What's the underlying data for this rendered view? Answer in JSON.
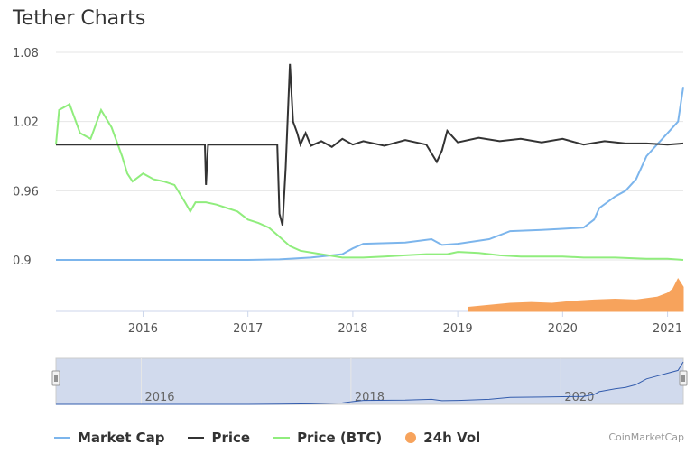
{
  "header": {
    "title": "Tether Charts"
  },
  "credit": "CoinMarketCap",
  "chart_data": {
    "type": "line",
    "yaxis": {
      "ticks": [
        "1.08",
        "1.02",
        "0.96",
        "0.9"
      ],
      "range": [
        0.88,
        1.08
      ]
    },
    "xaxis": {
      "ticks": [
        "2016",
        "2017",
        "2018",
        "2019",
        "2020",
        "2021"
      ],
      "range": [
        "2015-02",
        "2021-03"
      ]
    },
    "navigator_ticks": [
      "2016",
      "2018",
      "2020"
    ],
    "colors": {
      "market_cap": "#7cb5ec",
      "price": "#333333",
      "price_btc": "#90ed7d",
      "vol": "#f7a35c"
    },
    "series": [
      {
        "name": "Price",
        "x": [
          2015.17,
          2016.0,
          2016.59,
          2016.6,
          2016.62,
          2017.0,
          2017.1,
          2017.25,
          2017.28,
          2017.3,
          2017.33,
          2017.36,
          2017.4,
          2017.43,
          2017.47,
          2017.5,
          2017.55,
          2017.6,
          2017.7,
          2017.8,
          2017.9,
          2018.0,
          2018.1,
          2018.3,
          2018.5,
          2018.7,
          2018.8,
          2018.85,
          2018.9,
          2019.0,
          2019.2,
          2019.4,
          2019.6,
          2019.8,
          2020.0,
          2020.2,
          2020.4,
          2020.6,
          2020.8,
          2021.0,
          2021.15
        ],
        "values": [
          1.0,
          1.0,
          1.0,
          0.965,
          1.0,
          1.0,
          1.0,
          1.0,
          1.0,
          0.94,
          0.93,
          0.98,
          1.07,
          1.02,
          1.01,
          1.0,
          1.01,
          0.999,
          1.003,
          0.998,
          1.005,
          1.0,
          1.003,
          0.999,
          1.004,
          1.0,
          0.985,
          0.995,
          1.012,
          1.002,
          1.006,
          1.003,
          1.005,
          1.002,
          1.005,
          1.0,
          1.003,
          1.001,
          1.001,
          1.0,
          1.001
        ]
      },
      {
        "name": "Market Cap",
        "x": [
          2015.17,
          2016.0,
          2017.0,
          2017.3,
          2017.6,
          2017.9,
          2018.0,
          2018.1,
          2018.5,
          2018.75,
          2018.85,
          2019.0,
          2019.3,
          2019.5,
          2019.8,
          2020.0,
          2020.2,
          2020.3,
          2020.35,
          2020.5,
          2020.6,
          2020.7,
          2020.75,
          2020.8,
          2020.9,
          2021.0,
          2021.1,
          2021.15
        ],
        "values": [
          0.9,
          0.9,
          0.9,
          0.9005,
          0.902,
          0.905,
          0.91,
          0.914,
          0.915,
          0.918,
          0.913,
          0.914,
          0.918,
          0.925,
          0.926,
          0.927,
          0.928,
          0.935,
          0.945,
          0.955,
          0.96,
          0.97,
          0.98,
          0.99,
          1.0,
          1.01,
          1.02,
          1.05
        ]
      },
      {
        "name": "Price (BTC)",
        "x": [
          2015.17,
          2015.2,
          2015.3,
          2015.4,
          2015.5,
          2015.6,
          2015.7,
          2015.8,
          2015.85,
          2015.9,
          2016.0,
          2016.1,
          2016.2,
          2016.3,
          2016.4,
          2016.45,
          2016.5,
          2016.6,
          2016.7,
          2016.8,
          2016.9,
          2017.0,
          2017.1,
          2017.2,
          2017.3,
          2017.4,
          2017.5,
          2017.7,
          2017.9,
          2018.0,
          2018.1,
          2018.3,
          2018.5,
          2018.7,
          2018.9,
          2019.0,
          2019.2,
          2019.4,
          2019.6,
          2019.8,
          2020.0,
          2020.2,
          2020.5,
          2020.8,
          2021.0,
          2021.15
        ],
        "values": [
          1.0,
          1.03,
          1.035,
          1.01,
          1.005,
          1.03,
          1.015,
          0.99,
          0.975,
          0.968,
          0.975,
          0.97,
          0.968,
          0.965,
          0.95,
          0.942,
          0.95,
          0.95,
          0.948,
          0.945,
          0.942,
          0.935,
          0.932,
          0.928,
          0.92,
          0.912,
          0.908,
          0.905,
          0.902,
          0.902,
          0.902,
          0.903,
          0.904,
          0.905,
          0.905,
          0.907,
          0.906,
          0.904,
          0.903,
          0.903,
          0.903,
          0.902,
          0.902,
          0.901,
          0.901,
          0.9
        ]
      },
      {
        "name": "24h Vol",
        "x": [
          2019.1,
          2019.3,
          2019.5,
          2019.7,
          2019.9,
          2020.1,
          2020.3,
          2020.5,
          2020.7,
          2020.9,
          2021.0,
          2021.05,
          2021.1,
          2021.15
        ],
        "values": [
          0.1,
          0.15,
          0.2,
          0.22,
          0.2,
          0.25,
          0.28,
          0.3,
          0.28,
          0.35,
          0.45,
          0.55,
          0.8,
          0.6
        ]
      }
    ]
  },
  "legend": [
    {
      "label": "Market Cap",
      "kind": "line",
      "color": "#7cb5ec"
    },
    {
      "label": "Price",
      "kind": "line",
      "color": "#333333"
    },
    {
      "label": "Price (BTC)",
      "kind": "line",
      "color": "#90ed7d"
    },
    {
      "label": "24h Vol",
      "kind": "dot",
      "color": "#f7a35c"
    }
  ]
}
